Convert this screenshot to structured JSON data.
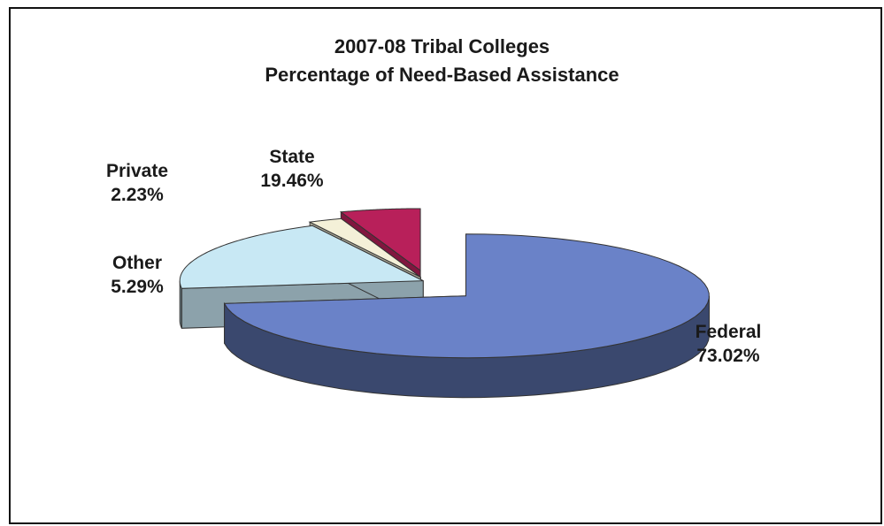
{
  "chart_data": {
    "type": "pie",
    "title": "2007-08 Tribal Colleges",
    "subtitle": "Percentage of Need-Based Assistance",
    "slices": [
      {
        "label": "Federal",
        "value": 73.02,
        "value_text": "73.02%",
        "color": "#6a82c8"
      },
      {
        "label": "State",
        "value": 19.46,
        "value_text": "19.46%",
        "color": "#c8e8f4"
      },
      {
        "label": "Private",
        "value": 2.23,
        "value_text": "2.23%",
        "color": "#f4f0d8"
      },
      {
        "label": "Other",
        "value": 5.29,
        "value_text": "5.29%",
        "color": "#b8205a"
      }
    ],
    "style": "3d-exploded",
    "legend": "none"
  }
}
